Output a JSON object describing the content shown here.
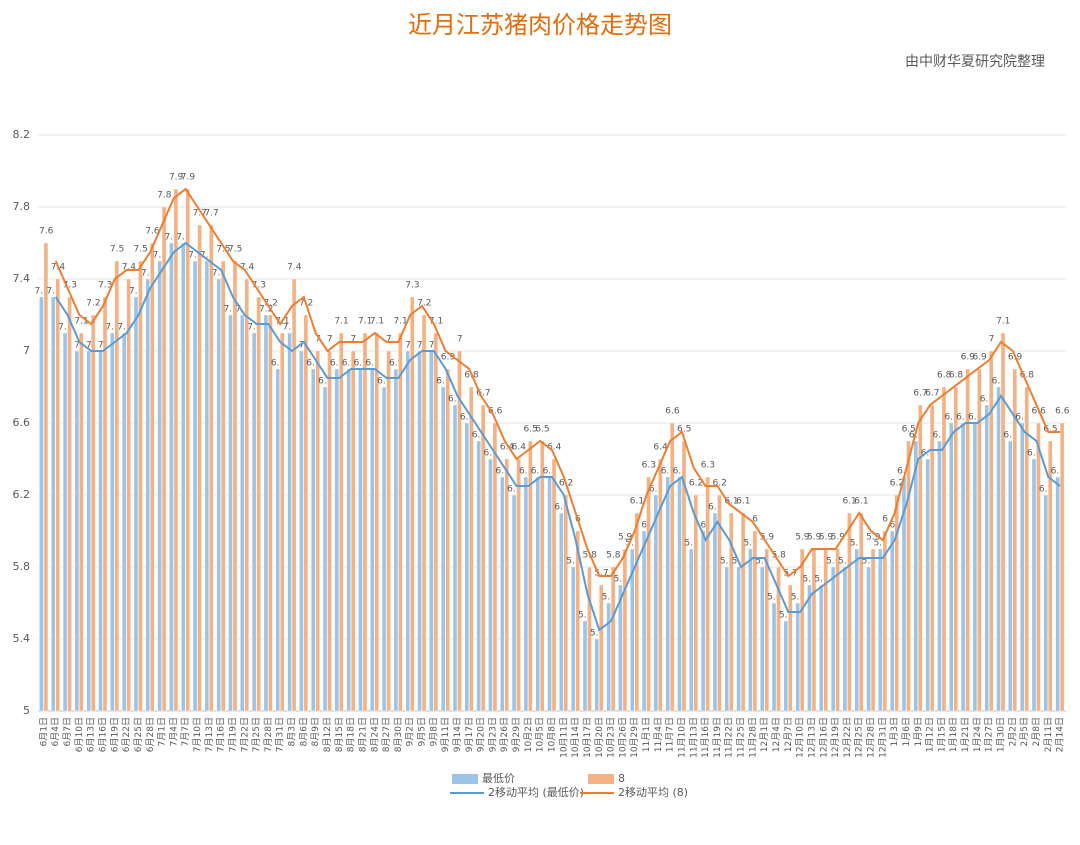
{
  "chart_data": {
    "type": "bar",
    "title": "近月江苏猪肉价格走势图",
    "subtitle": "由中财华夏研究院整理",
    "categories": [
      "6月1日",
      "6月4日",
      "6月7日",
      "6月10日",
      "6月13日",
      "6月16日",
      "6月19日",
      "6月22日",
      "6月25日",
      "6月28日",
      "7月1日",
      "7月4日",
      "7月7日",
      "7月10日",
      "7月13日",
      "7月16日",
      "7月19日",
      "7月22日",
      "7月25日",
      "7月28日",
      "7月31日",
      "8月3日",
      "8月6日",
      "8月9日",
      "8月12日",
      "8月15日",
      "8月18日",
      "8月21日",
      "8月24日",
      "8月27日",
      "8月30日",
      "9月2日",
      "9月5日",
      "9月8日",
      "9月11日",
      "9月14日",
      "9月17日",
      "9月20日",
      "9月23日",
      "9月26日",
      "9月29日",
      "10月2日",
      "10月5日",
      "10月8日",
      "10月11日",
      "10月14日",
      "10月17日",
      "10月20日",
      "10月23日",
      "10月26日",
      "10月29日",
      "11月1日",
      "11月4日",
      "11月7日",
      "11月10日",
      "11月13日",
      "11月16日",
      "11月19日",
      "11月22日",
      "11月25日",
      "11月28日",
      "12月1日",
      "12月4日",
      "12月7日",
      "12月10日",
      "12月13日",
      "12月16日",
      "12月19日",
      "12月22日",
      "12月25日",
      "12月28日",
      "12月31日",
      "1月3日",
      "1月6日",
      "1月9日",
      "1月12日",
      "1月15日",
      "1月18日",
      "1月21日",
      "1月24日",
      "1月27日",
      "1月30日",
      "2月2日",
      "2月5日",
      "2月8日",
      "2月11日",
      "2月14日"
    ],
    "series": [
      {
        "name": "最低价",
        "color": "#9dc3e6",
        "values": [
          7.3,
          7.3,
          7.1,
          7.0,
          7.0,
          7.0,
          7.1,
          7.1,
          7.3,
          7.4,
          7.5,
          7.6,
          7.6,
          7.5,
          7.5,
          7.4,
          7.2,
          7.2,
          7.1,
          7.2,
          6.9,
          7.1,
          7.0,
          6.9,
          6.8,
          6.9,
          6.9,
          6.9,
          6.9,
          6.8,
          6.9,
          7.0,
          7.0,
          7.0,
          6.8,
          6.7,
          6.6,
          6.5,
          6.4,
          6.3,
          6.2,
          6.3,
          6.3,
          6.3,
          6.1,
          5.8,
          5.5,
          5.4,
          5.6,
          5.7,
          5.9,
          6.0,
          6.2,
          6.3,
          6.3,
          5.9,
          6.0,
          6.1,
          5.8,
          5.8,
          5.9,
          5.8,
          5.6,
          5.5,
          5.6,
          5.7,
          5.7,
          5.8,
          5.8,
          5.9,
          5.8,
          5.9,
          6.0,
          6.3,
          6.5,
          6.4,
          6.5,
          6.6,
          6.6,
          6.6,
          6.7,
          6.8,
          6.5,
          6.6,
          6.4,
          6.2,
          6.3
        ]
      },
      {
        "name": "8",
        "color": "#f4b183",
        "values": [
          7.6,
          7.4,
          7.3,
          7.1,
          7.2,
          7.3,
          7.5,
          7.4,
          7.5,
          7.6,
          7.8,
          7.9,
          7.9,
          7.7,
          7.7,
          7.5,
          7.5,
          7.4,
          7.3,
          7.2,
          7.1,
          7.4,
          7.2,
          7.0,
          7.0,
          7.1,
          7.0,
          7.1,
          7.1,
          7.0,
          7.1,
          7.3,
          7.2,
          7.1,
          6.9,
          7.0,
          6.8,
          6.7,
          6.6,
          6.4,
          6.4,
          6.5,
          6.5,
          6.4,
          6.2,
          6.0,
          5.8,
          5.7,
          5.8,
          5.9,
          6.1,
          6.3,
          6.4,
          6.6,
          6.5,
          6.2,
          6.3,
          6.2,
          6.1,
          6.1,
          6.0,
          5.9,
          5.8,
          5.7,
          5.9,
          5.9,
          5.9,
          5.9,
          6.1,
          6.1,
          5.9,
          6.0,
          6.2,
          6.5,
          6.7,
          6.7,
          6.8,
          6.8,
          6.9,
          6.9,
          7.0,
          7.1,
          6.9,
          6.8,
          6.6,
          6.5,
          6.6
        ]
      }
    ],
    "trendlines": [
      {
        "name": "2移动平均 (最低价)",
        "series": 0,
        "period": 2,
        "color": "#5b9bd5"
      },
      {
        "name": "2移动平均 (8)",
        "series": 1,
        "period": 2,
        "color": "#ed7d31"
      }
    ],
    "ylim": [
      5,
      8.4
    ],
    "yticks": [
      5,
      5.4,
      5.8,
      6.2,
      6.6,
      7,
      7.4,
      7.8,
      8.2
    ],
    "grid": true,
    "legend": "bottom",
    "title_color": "#e46c0a"
  }
}
